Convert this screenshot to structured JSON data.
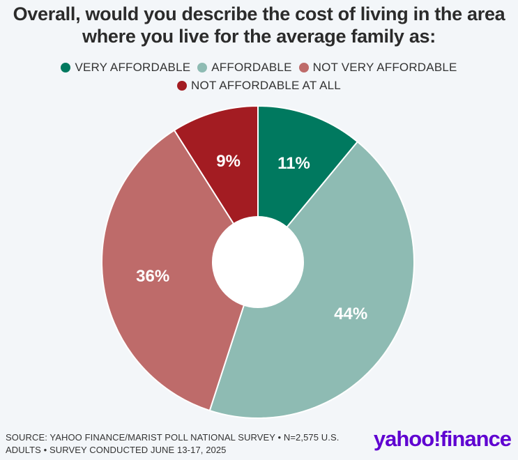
{
  "chart_data": {
    "type": "pie",
    "title": "Overall, would you describe the cost of living in the area where you live for the average family as:",
    "title_lines": [
      "Overall, would you describe the cost of living in the area",
      "where you live for the average family as:"
    ],
    "categories": [
      "VERY AFFORDABLE",
      "AFFORDABLE",
      "NOT VERY AFFORDABLE",
      "NOT AFFORDABLE AT ALL"
    ],
    "values": [
      11,
      44,
      36,
      9
    ],
    "value_labels": [
      "11%",
      "44%",
      "36%",
      "9%"
    ],
    "colors": [
      "#00795f",
      "#8ebbb3",
      "#be6b6a",
      "#a31c22"
    ],
    "donut": true,
    "legend_position": "top"
  },
  "source": {
    "line1": "SOURCE: YAHOO FINANCE/MARIST POLL NATIONAL SURVEY • N=2,575 U.S.",
    "line2": "ADULTS • SURVEY CONDUCTED JUNE 13-17, 2025"
  },
  "logo": "yahoo!finance"
}
